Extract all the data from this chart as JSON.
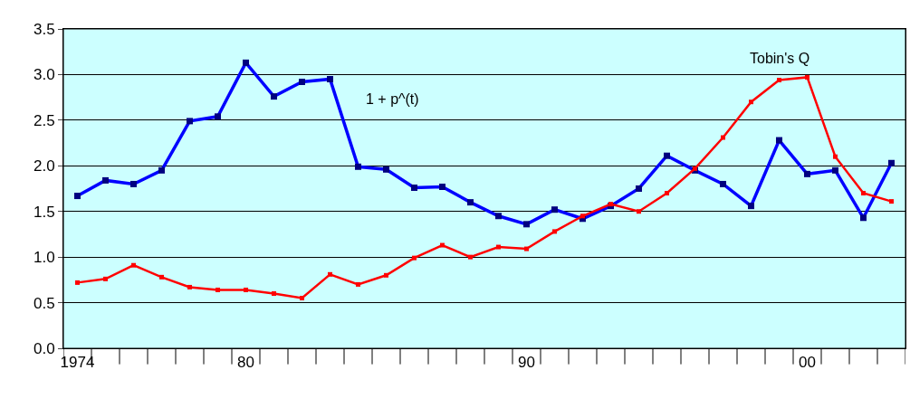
{
  "chart_data": {
    "type": "line",
    "categories": [
      "1974",
      null,
      null,
      null,
      null,
      null,
      "80",
      null,
      null,
      null,
      null,
      null,
      null,
      null,
      null,
      null,
      "90",
      null,
      null,
      null,
      null,
      null,
      null,
      null,
      null,
      null,
      "00",
      null,
      null,
      null
    ],
    "series": [
      {
        "name": "1 + p^(t)",
        "color": "#0000ff",
        "values": [
          1.67,
          1.84,
          1.8,
          1.95,
          2.49,
          2.54,
          3.13,
          2.76,
          2.92,
          2.95,
          1.99,
          1.96,
          1.76,
          1.77,
          1.6,
          1.45,
          1.36,
          1.52,
          1.42,
          1.56,
          1.75,
          2.11,
          1.95,
          1.8,
          1.56,
          2.28,
          1.91,
          1.95,
          1.43,
          2.03
        ]
      },
      {
        "name": "Tobin's Q",
        "color": "#ff0000",
        "values": [
          0.72,
          0.76,
          0.91,
          0.78,
          0.67,
          0.64,
          0.64,
          0.6,
          0.55,
          0.81,
          0.7,
          0.8,
          0.99,
          1.13,
          1.0,
          1.11,
          1.09,
          1.28,
          1.45,
          1.58,
          1.5,
          1.7,
          1.97,
          2.31,
          2.7,
          2.94,
          2.97,
          2.1,
          1.7,
          1.61
        ]
      }
    ],
    "ylim": [
      0,
      3.5
    ],
    "yticks": [
      {
        "value": 0,
        "label": "0.0"
      },
      {
        "value": 0.5,
        "label": "0.5"
      },
      {
        "value": 1,
        "label": "1.0"
      },
      {
        "value": 1.5,
        "label": "1.5"
      },
      {
        "value": 2,
        "label": "2.0"
      },
      {
        "value": 2.5,
        "label": "2.5"
      },
      {
        "value": 3,
        "label": "3.0"
      },
      {
        "value": 3.5,
        "label": "3.5"
      }
    ],
    "grid": "y",
    "legend": false,
    "marker": "square",
    "line_style": "solid"
  }
}
